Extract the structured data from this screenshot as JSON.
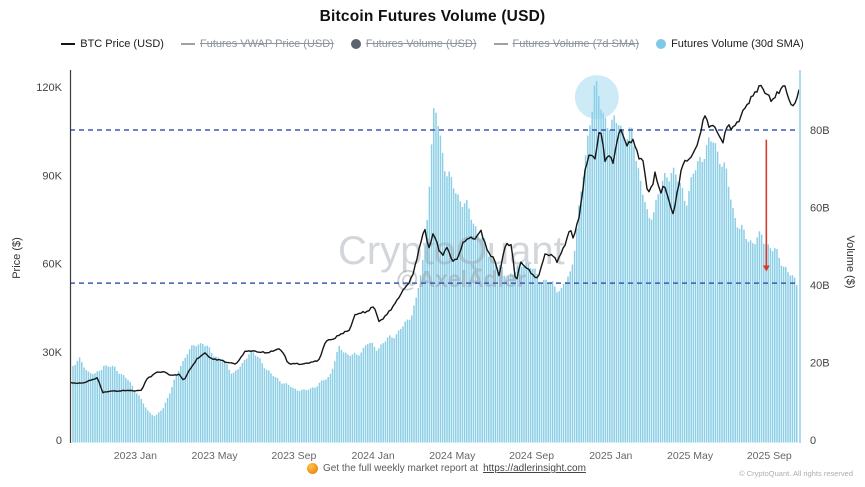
{
  "title": "Bitcoin Futures Volume (USD)",
  "legend": [
    {
      "id": "btc-price-usd",
      "label": "BTC Price (USD)",
      "icon": "line-swatch-icon",
      "type": "line",
      "color": "#141414",
      "active": true
    },
    {
      "id": "futures-vwap-price-usd",
      "label": "Futures VWAP Price (USD)",
      "icon": "line-swatch-icon",
      "type": "line",
      "color": "#9aa1a8",
      "active": false
    },
    {
      "id": "futures-volume-usd",
      "label": "Futures Volume (USD)",
      "icon": "dot-swatch-icon",
      "type": "dot",
      "color": "#5b646e",
      "active": false
    },
    {
      "id": "futures-volume-7d-sma",
      "label": "Futures Volume (7d SMA)",
      "icon": "line-swatch-icon",
      "type": "line",
      "color": "#9aa1a8",
      "active": false
    },
    {
      "id": "futures-volume-30d-sma",
      "label": "Futures Volume (30d SMA)",
      "icon": "dot-swatch-icon",
      "type": "dot",
      "color": "#7ec9e6",
      "active": true
    }
  ],
  "watermark": {
    "line1": "CryptoQuant",
    "line2": "@AxelAdler"
  },
  "footer": {
    "left_text": "Get the full weekly market report at",
    "link_text": "https://adlerinsight.com",
    "copyright": "© CryptoQuant. All rights reserved"
  },
  "colors": {
    "bar": "#8BCEE6",
    "price_line": "#161616",
    "ref_line": "#3D59B0",
    "arrow": "#D23B2E",
    "highlight": "rgba(141,211,235,0.45)",
    "right_axis": "#AEDCEC",
    "left_axis": "#3B3B3B",
    "watermark": "#96A0AA",
    "tick_text": "#444444",
    "x_tick_text": "#666666"
  },
  "chart_data": {
    "type": "combo",
    "x_unit": "months since 2022-10",
    "x_range": [
      -0.3,
      36.55
    ],
    "x_ticks": [
      {
        "m": 3,
        "label": "2023 Jan"
      },
      {
        "m": 7,
        "label": "2023 May"
      },
      {
        "m": 11,
        "label": "2023 Sep"
      },
      {
        "m": 15,
        "label": "2024 Jan"
      },
      {
        "m": 19,
        "label": "2024 May"
      },
      {
        "m": 23,
        "label": "2024 Sep"
      },
      {
        "m": 27,
        "label": "2025 Jan"
      },
      {
        "m": 31,
        "label": "2025 May"
      },
      {
        "m": 35,
        "label": "2025 Sep"
      }
    ],
    "y_left": {
      "label": "Price ($)",
      "unit": "K USD",
      "max": 120,
      "ticks": [
        {
          "v": 0,
          "label": "0"
        },
        {
          "v": 30,
          "label": "30K"
        },
        {
          "v": 60,
          "label": "60K"
        },
        {
          "v": 90,
          "label": "90K"
        },
        {
          "v": 120,
          "label": "120K"
        }
      ]
    },
    "y_right": {
      "label": "Volume ($)",
      "unit": "B USD",
      "max": 80,
      "ticks": [
        {
          "v": 0,
          "label": "0"
        },
        {
          "v": 20,
          "label": "20B"
        },
        {
          "v": 40,
          "label": "40B"
        },
        {
          "v": 60,
          "label": "60B"
        },
        {
          "v": 80,
          "label": "80B"
        }
      ]
    },
    "series": [
      {
        "id": "btc-price",
        "name": "BTC Price (USD)",
        "type": "line",
        "axis": "left",
        "unit": "K USD",
        "points": [
          [
            -0.3,
            19.5
          ],
          [
            0.3,
            19.2
          ],
          [
            0.7,
            20.3
          ],
          [
            1.1,
            21.0
          ],
          [
            1.35,
            16.2
          ],
          [
            1.8,
            16.6
          ],
          [
            2.5,
            16.8
          ],
          [
            3.3,
            16.8
          ],
          [
            3.6,
            21.0
          ],
          [
            4.1,
            23.0
          ],
          [
            4.5,
            23.2
          ],
          [
            4.8,
            21.8
          ],
          [
            5.2,
            22.4
          ],
          [
            5.45,
            20.2
          ],
          [
            5.8,
            24.5
          ],
          [
            6.1,
            27.5
          ],
          [
            6.5,
            29.5
          ],
          [
            6.9,
            27.5
          ],
          [
            7.4,
            27.0
          ],
          [
            7.7,
            26.3
          ],
          [
            8.1,
            25.8
          ],
          [
            8.5,
            30.0
          ],
          [
            9.0,
            30.3
          ],
          [
            9.6,
            29.5
          ],
          [
            10.2,
            31.0
          ],
          [
            10.5,
            29.5
          ],
          [
            10.7,
            26.0
          ],
          [
            11.3,
            25.8
          ],
          [
            11.9,
            26.3
          ],
          [
            12.3,
            27.5
          ],
          [
            12.6,
            33.5
          ],
          [
            13.0,
            34.5
          ],
          [
            13.4,
            36.0
          ],
          [
            13.8,
            37.5
          ],
          [
            14.1,
            42.5
          ],
          [
            14.5,
            43.5
          ],
          [
            14.8,
            44.0
          ],
          [
            15.05,
            45.5
          ],
          [
            15.3,
            40.3
          ],
          [
            15.7,
            42.5
          ],
          [
            16.2,
            47.5
          ],
          [
            16.6,
            51.5
          ],
          [
            17.0,
            56.0
          ],
          [
            17.45,
            68.0
          ],
          [
            17.6,
            73.0
          ],
          [
            17.8,
            64.5
          ],
          [
            18.05,
            70.5
          ],
          [
            18.3,
            65.0
          ],
          [
            18.55,
            63.0
          ],
          [
            18.75,
            65.5
          ],
          [
            19.0,
            60.5
          ],
          [
            19.3,
            62.5
          ],
          [
            19.6,
            67.5
          ],
          [
            19.9,
            69.0
          ],
          [
            20.2,
            68.5
          ],
          [
            20.45,
            71.0
          ],
          [
            20.8,
            64.0
          ],
          [
            21.1,
            61.5
          ],
          [
            21.35,
            56.0
          ],
          [
            21.7,
            67.0
          ],
          [
            22.0,
            65.5
          ],
          [
            22.2,
            53.5
          ],
          [
            22.45,
            60.5
          ],
          [
            22.7,
            58.5
          ],
          [
            23.0,
            57.0
          ],
          [
            23.3,
            54.5
          ],
          [
            23.7,
            63.5
          ],
          [
            24.0,
            63.0
          ],
          [
            24.3,
            60.5
          ],
          [
            24.7,
            67.0
          ],
          [
            24.95,
            71.5
          ],
          [
            25.1,
            68.5
          ],
          [
            25.4,
            76.0
          ],
          [
            25.7,
            91.0
          ],
          [
            25.95,
            98.0
          ],
          [
            26.2,
            95.5
          ],
          [
            26.45,
            106.5
          ],
          [
            26.7,
            95.0
          ],
          [
            26.9,
            97.5
          ],
          [
            27.1,
            94.0
          ],
          [
            27.35,
            102.5
          ],
          [
            27.55,
            106.0
          ],
          [
            27.8,
            100.0
          ],
          [
            28.1,
            102.0
          ],
          [
            28.4,
            96.5
          ],
          [
            28.6,
            96.0
          ],
          [
            28.85,
            84.0
          ],
          [
            29.1,
            86.0
          ],
          [
            29.25,
            92.0
          ],
          [
            29.5,
            83.0
          ],
          [
            29.7,
            87.0
          ],
          [
            29.9,
            82.0
          ],
          [
            30.15,
            77.0
          ],
          [
            30.4,
            85.0
          ],
          [
            30.6,
            94.0
          ],
          [
            30.9,
            95.5
          ],
          [
            31.2,
            97.0
          ],
          [
            31.5,
            104.0
          ],
          [
            31.75,
            111.0
          ],
          [
            32.0,
            105.0
          ],
          [
            32.2,
            108.0
          ],
          [
            32.45,
            103.5
          ],
          [
            32.65,
            101.0
          ],
          [
            32.9,
            107.0
          ],
          [
            33.2,
            106.5
          ],
          [
            33.45,
            108.0
          ],
          [
            33.7,
            112.0
          ],
          [
            33.9,
            115.0
          ],
          [
            34.1,
            116.0
          ],
          [
            34.35,
            118.5
          ],
          [
            34.6,
            121.0
          ],
          [
            34.9,
            117.0
          ],
          [
            35.1,
            115.0
          ],
          [
            35.4,
            118.0
          ],
          [
            35.7,
            120.5
          ],
          [
            36.0,
            116.0
          ],
          [
            36.15,
            113.5
          ],
          [
            36.3,
            114.5
          ],
          [
            36.45,
            118.5
          ]
        ]
      },
      {
        "id": "futures-volume-30d-sma",
        "name": "Futures Volume (30d SMA)",
        "type": "bar",
        "axis": "right",
        "unit": "B USD",
        "points": [
          [
            -0.3,
            19
          ],
          [
            0.2,
            21
          ],
          [
            0.6,
            18
          ],
          [
            1.0,
            17
          ],
          [
            1.4,
            19.5
          ],
          [
            2.0,
            18.5
          ],
          [
            2.6,
            15.5
          ],
          [
            3.1,
            12
          ],
          [
            3.6,
            7.5
          ],
          [
            4.0,
            6
          ],
          [
            4.4,
            8
          ],
          [
            4.8,
            13
          ],
          [
            5.2,
            18
          ],
          [
            5.6,
            22.5
          ],
          [
            6.0,
            24.5
          ],
          [
            6.4,
            25.5
          ],
          [
            6.9,
            22.5
          ],
          [
            7.4,
            21
          ],
          [
            7.9,
            17.5
          ],
          [
            8.4,
            19.5
          ],
          [
            8.8,
            23.5
          ],
          [
            9.3,
            20.5
          ],
          [
            9.9,
            16.5
          ],
          [
            10.5,
            14.5
          ],
          [
            11.0,
            13
          ],
          [
            11.6,
            12.5
          ],
          [
            12.2,
            14
          ],
          [
            12.8,
            16.5
          ],
          [
            13.3,
            24
          ],
          [
            13.7,
            22.5
          ],
          [
            14.2,
            22
          ],
          [
            14.7,
            25.5
          ],
          [
            15.2,
            24
          ],
          [
            15.8,
            26.5
          ],
          [
            16.3,
            28
          ],
          [
            16.8,
            31
          ],
          [
            17.2,
            36
          ],
          [
            17.6,
            48
          ],
          [
            17.9,
            70
          ],
          [
            18.1,
            85
          ],
          [
            18.35,
            78
          ],
          [
            18.7,
            68
          ],
          [
            19.2,
            63
          ],
          [
            19.7,
            60
          ],
          [
            20.2,
            55
          ],
          [
            20.7,
            50
          ],
          [
            21.2,
            46
          ],
          [
            21.7,
            43
          ],
          [
            22.2,
            44
          ],
          [
            22.6,
            47
          ],
          [
            23.1,
            44
          ],
          [
            23.6,
            41
          ],
          [
            24.1,
            40
          ],
          [
            24.5,
            38
          ],
          [
            25.0,
            43
          ],
          [
            25.5,
            62
          ],
          [
            25.9,
            80
          ],
          [
            26.2,
            90
          ],
          [
            26.6,
            84
          ],
          [
            27.0,
            80
          ],
          [
            27.4,
            83
          ],
          [
            27.8,
            78
          ],
          [
            28.1,
            80
          ],
          [
            28.5,
            68
          ],
          [
            28.9,
            57
          ],
          [
            29.3,
            63
          ],
          [
            29.7,
            68
          ],
          [
            30.1,
            71
          ],
          [
            30.4,
            67
          ],
          [
            30.8,
            62
          ],
          [
            31.1,
            67
          ],
          [
            31.5,
            72
          ],
          [
            31.9,
            75
          ],
          [
            32.2,
            76
          ],
          [
            32.5,
            72
          ],
          [
            32.8,
            68
          ],
          [
            33.2,
            58
          ],
          [
            33.5,
            54
          ],
          [
            33.9,
            51.5
          ],
          [
            34.2,
            51
          ],
          [
            34.6,
            52.5
          ],
          [
            35.0,
            50.5
          ],
          [
            35.3,
            49
          ],
          [
            35.6,
            47
          ],
          [
            35.9,
            44.5
          ],
          [
            36.2,
            42
          ],
          [
            36.45,
            41
          ]
        ]
      }
    ],
    "annotations": {
      "ref_lines": [
        {
          "axis": "right",
          "value": 80
        },
        {
          "axis": "right",
          "value": 40.5
        }
      ],
      "arrow": {
        "month": 34.85,
        "from_value": 77.5,
        "to_value": 43.5,
        "axis": "right"
      },
      "highlight_circle": {
        "month": 26.3,
        "value": 88.5,
        "radius": 22
      }
    },
    "grid": false,
    "legend_position": "top"
  }
}
